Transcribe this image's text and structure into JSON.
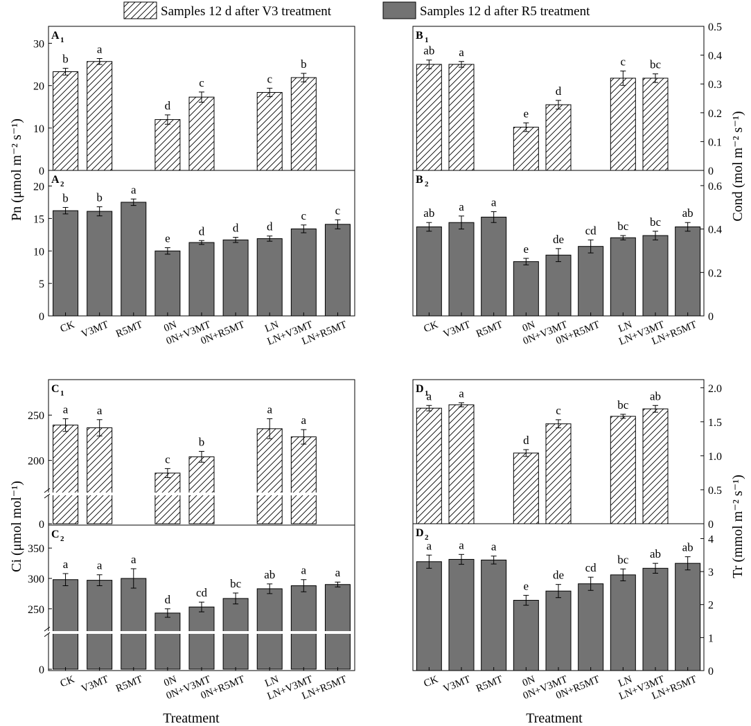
{
  "colors": {
    "solid_fill": "#737373",
    "frame": "#000000",
    "background": "#ffffff"
  },
  "legend": {
    "v3_label": "Samples 12 d after V3 treatment",
    "r5_label": "Samples 12 d after R5 treatment",
    "v3_style": "hatched",
    "r5_style": "solid grey"
  },
  "chart_data": [
    {
      "id": "A1",
      "letter": "A",
      "sub": "1",
      "type": "bar",
      "style": "hatched",
      "categories": [
        "CK",
        "V3MT",
        "R5MT",
        "0N",
        "0N+V3MT",
        "0N+R5MT",
        "LN",
        "LN+V3MT",
        "LN+R5MT"
      ],
      "values": [
        23.3,
        25.7,
        null,
        12.0,
        17.3,
        null,
        18.4,
        21.9,
        null
      ],
      "errors": [
        0.8,
        0.7,
        null,
        1.1,
        1.2,
        null,
        1.0,
        1.0,
        null
      ],
      "letters": [
        "b",
        "a",
        "",
        "d",
        "c",
        "",
        "c",
        "b",
        ""
      ],
      "ylim": [
        0,
        34
      ],
      "yticks": [
        0,
        10,
        20,
        30
      ],
      "ytick_labels": [
        "0",
        "10",
        "20",
        "30"
      ],
      "axis_side": "left"
    },
    {
      "id": "A2",
      "letter": "A",
      "sub": "2",
      "type": "bar",
      "style": "solid",
      "categories": [
        "CK",
        "V3MT",
        "R5MT",
        "0N",
        "0N+V3MT",
        "0N+R5MT",
        "LN",
        "LN+V3MT",
        "LN+R5MT"
      ],
      "values": [
        16.2,
        16.1,
        17.5,
        10.0,
        11.3,
        11.7,
        11.9,
        13.4,
        14.1
      ],
      "errors": [
        0.5,
        0.7,
        0.5,
        0.5,
        0.3,
        0.4,
        0.4,
        0.6,
        0.7
      ],
      "letters": [
        "b",
        "b",
        "a",
        "e",
        "d",
        "d",
        "d",
        "c",
        "c"
      ],
      "ylim": [
        0,
        22.4
      ],
      "yticks": [
        0,
        5,
        10,
        15,
        20
      ],
      "ytick_labels": [
        "0",
        "5",
        "10",
        "15",
        "20"
      ],
      "axis_side": "left"
    },
    {
      "id": "B1",
      "letter": "B",
      "sub": "1",
      "type": "bar",
      "style": "hatched",
      "categories": [
        "CK",
        "V3MT",
        "R5MT",
        "0N",
        "0N+V3MT",
        "0N+R5MT",
        "LN",
        "LN+V3MT",
        "LN+R5MT"
      ],
      "values": [
        0.368,
        0.368,
        null,
        0.15,
        0.228,
        null,
        0.32,
        0.32,
        null
      ],
      "errors": [
        0.015,
        0.01,
        null,
        0.015,
        0.015,
        null,
        0.025,
        0.015,
        null
      ],
      "letters": [
        "ab",
        "a",
        "",
        "e",
        "d",
        "",
        "c",
        "bc",
        ""
      ],
      "ylim": [
        0,
        0.5
      ],
      "yticks": [
        0,
        0.1,
        0.2,
        0.3,
        0.4,
        0.5
      ],
      "ytick_labels": [
        "0",
        "0.1",
        "0.2",
        "0.3",
        "0.4",
        "0.5"
      ],
      "axis_side": "right"
    },
    {
      "id": "B2",
      "letter": "B",
      "sub": "2",
      "type": "bar",
      "style": "solid",
      "categories": [
        "CK",
        "V3MT",
        "R5MT",
        "0N",
        "0N+V3MT",
        "0N+R5MT",
        "LN",
        "LN+V3MT",
        "LN+R5MT"
      ],
      "values": [
        0.41,
        0.43,
        0.455,
        0.25,
        0.28,
        0.32,
        0.36,
        0.37,
        0.41
      ],
      "errors": [
        0.02,
        0.03,
        0.025,
        0.015,
        0.03,
        0.03,
        0.01,
        0.02,
        0.02
      ],
      "letters": [
        "ab",
        "a",
        "a",
        "e",
        "de",
        "cd",
        "bc",
        "bc",
        "ab"
      ],
      "ylim": [
        0,
        0.67
      ],
      "yticks": [
        0,
        0.2,
        0.4,
        0.6
      ],
      "ytick_labels": [
        "0",
        "0.2",
        "0.4",
        "0.6"
      ],
      "axis_side": "right"
    },
    {
      "id": "C1",
      "letter": "C",
      "sub": "1",
      "type": "bar",
      "style": "hatched",
      "categories": [
        "CK",
        "V3MT",
        "R5MT",
        "0N",
        "0N+V3MT",
        "0N+R5MT",
        "LN",
        "LN+V3MT",
        "LN+R5MT"
      ],
      "values": [
        239,
        236,
        null,
        186,
        204,
        null,
        235,
        226,
        null
      ],
      "errors": [
        7,
        9,
        null,
        5,
        6,
        null,
        11,
        8,
        null
      ],
      "letters": [
        "a",
        "a",
        "",
        "c",
        "b",
        "",
        "a",
        "a",
        ""
      ],
      "ylim": [
        0,
        285
      ],
      "yticks": [
        0,
        200,
        250
      ],
      "ytick_labels": [
        "0",
        "200",
        "250"
      ],
      "axis_side": "left",
      "axis_break": true
    },
    {
      "id": "C2",
      "letter": "C",
      "sub": "2",
      "type": "bar",
      "style": "solid",
      "categories": [
        "CK",
        "V3MT",
        "R5MT",
        "0N",
        "0N+V3MT",
        "0N+R5MT",
        "LN",
        "LN+V3MT",
        "LN+R5MT"
      ],
      "values": [
        298,
        297,
        300,
        243,
        253,
        267,
        283,
        288,
        290
      ],
      "errors": [
        10,
        9,
        16,
        7,
        8,
        9,
        8,
        10,
        4
      ],
      "letters": [
        "a",
        "a",
        "a",
        "d",
        "cd",
        "bc",
        "ab",
        "a",
        "a"
      ],
      "ylim": [
        0,
        370
      ],
      "yticks": [
        0,
        250,
        300,
        350
      ],
      "ytick_labels": [
        "0",
        "250",
        "300",
        "350"
      ],
      "axis_side": "left",
      "axis_break": true
    },
    {
      "id": "D1",
      "letter": "D",
      "sub": "1",
      "type": "bar",
      "style": "hatched",
      "categories": [
        "CK",
        "V3MT",
        "R5MT",
        "0N",
        "0N+V3MT",
        "0N+R5MT",
        "LN",
        "LN+V3MT",
        "LN+R5MT"
      ],
      "values": [
        1.7,
        1.75,
        null,
        1.04,
        1.47,
        null,
        1.58,
        1.69,
        null
      ],
      "errors": [
        0.04,
        0.03,
        null,
        0.05,
        0.06,
        null,
        0.03,
        0.05,
        null
      ],
      "letters": [
        "a",
        "a",
        "",
        "d",
        "c",
        "",
        "bc",
        "ab",
        ""
      ],
      "ylim": [
        0,
        2.12
      ],
      "yticks": [
        0,
        0.5,
        1.0,
        1.5,
        2.0
      ],
      "ytick_labels": [
        "0",
        "0.5",
        "1.0",
        "1.5",
        "2.0"
      ],
      "axis_side": "right"
    },
    {
      "id": "D2",
      "letter": "D",
      "sub": "2",
      "type": "bar",
      "style": "solid",
      "categories": [
        "CK",
        "V3MT",
        "R5MT",
        "0N",
        "0N+V3MT",
        "0N+R5MT",
        "LN",
        "LN+V3MT",
        "LN+R5MT"
      ],
      "values": [
        3.3,
        3.37,
        3.35,
        2.13,
        2.41,
        2.63,
        2.9,
        3.1,
        3.25
      ],
      "errors": [
        0.2,
        0.15,
        0.12,
        0.15,
        0.2,
        0.2,
        0.18,
        0.15,
        0.2
      ],
      "letters": [
        "a",
        "a",
        "a",
        "e",
        "de",
        "cd",
        "bc",
        "ab",
        "ab"
      ],
      "ylim": [
        0,
        4.45
      ],
      "yticks": [
        0,
        1,
        2,
        3,
        4
      ],
      "ytick_labels": [
        "0",
        "1",
        "2",
        "3",
        "4"
      ],
      "axis_side": "right"
    }
  ],
  "axes": {
    "pn_ylabel": "Pn (μmol m⁻² s⁻¹)",
    "cond_ylabel": "Cond (mol m⁻² s⁻¹)",
    "ci_ylabel": "Ci (μmol mol⁻¹)",
    "tr_ylabel": "Tr (mmol m⁻² s⁻¹)",
    "xlabel": "Treatment",
    "categories": [
      "CK",
      "V3MT",
      "R5MT",
      "0N",
      "0N+V3MT",
      "0N+R5MT",
      "LN",
      "LN+V3MT",
      "LN+R5MT"
    ]
  }
}
